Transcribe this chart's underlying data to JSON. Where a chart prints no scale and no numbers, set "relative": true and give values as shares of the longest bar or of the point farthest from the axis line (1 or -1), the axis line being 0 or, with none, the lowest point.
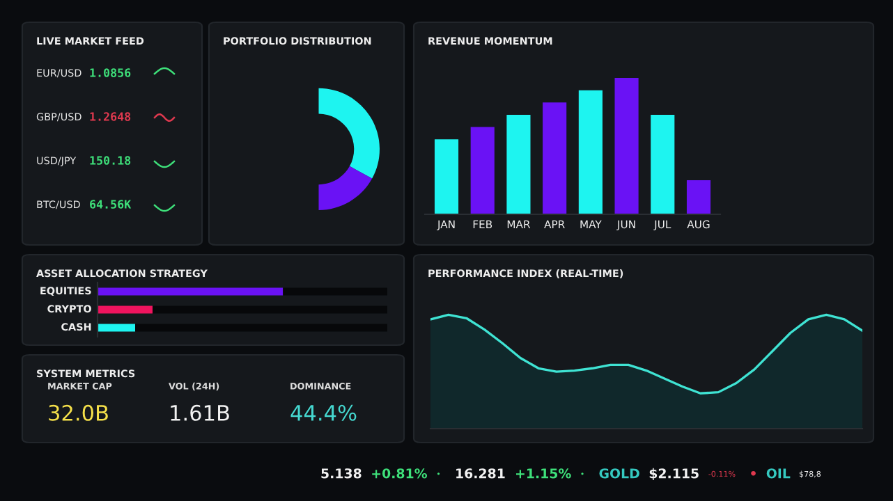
{
  "chart_data": [
    {
      "type": "other",
      "title": "LIVE MARKET FEED",
      "annotations": [
        "EUR/USD",
        "1.0856",
        "GBP/USD",
        "1.2648",
        "USD/JPY",
        "150.18",
        "BTC/USD",
        "64.56K"
      ],
      "colors": [
        "#e6e6e6",
        "#3ee07a",
        "#e6e6e6",
        "#e0394f",
        "#e6e6e6",
        "#3ee07a",
        "#e6e6e6",
        "#3ee07a"
      ]
    },
    {
      "type": "donut",
      "title": "PORTFOLIO DISTRIBUTION",
      "categories": [
        null,
        null
      ],
      "values": [
        66,
        34
      ],
      "colors": [
        "#1ef4f0",
        "#6a12f5"
      ]
    },
    {
      "type": "bar",
      "title": "REVENUE MOMENTUM",
      "relative": true,
      "categories": [
        "JAN",
        "FEB",
        "MAR",
        "APR",
        "MAY",
        "JUN",
        "JUL",
        "AUG"
      ],
      "values": [
        0.55,
        0.64,
        0.73,
        0.82,
        0.91,
        1,
        0.73,
        0.25
      ],
      "colors": [
        "#1ef4f0",
        "#6a12f5",
        "#1ef4f0",
        "#6a12f5",
        "#1ef4f0",
        "#6a12f5",
        "#1ef4f0",
        "#6a12f5"
      ]
    },
    {
      "type": "bar",
      "title": "ASSET ALLOCATION STRATEGY",
      "orientation": "horizontal",
      "stacked": true,
      "relative": true,
      "categories": [
        "EQUITIES",
        "CRYPTO",
        "CASH"
      ],
      "series": [
        {
          "colors": [
            "#6a12f5",
            "#f0145e",
            "#1ef4f0"
          ],
          "values": [
            0.64,
            0.19,
            0.13
          ]
        },
        {
          "color": "#07080a",
          "values": [
            0.36,
            0.81,
            0.87
          ]
        }
      ]
    },
    {
      "type": "other",
      "title": "SYSTEM METRICS",
      "annotations": [
        "MARKET CAP",
        "VOL (24H)",
        "DOMINANCE",
        "32.0B",
        "1.61B",
        "44.4%"
      ],
      "colors": [
        "#dddddd",
        "#dddddd",
        "#dddddd",
        "#f5e04a",
        "#f2f2f2",
        "#45d8d0"
      ]
    },
    {
      "type": "area",
      "title": "PERFORMANCE INDEX (REAL-TIME)",
      "relative": true,
      "categories": [
        null,
        null,
        null,
        null,
        null,
        null,
        null,
        null,
        null,
        null,
        null,
        null,
        null,
        null,
        null,
        null,
        null,
        null,
        null,
        null,
        null,
        null,
        null,
        null,
        null
      ],
      "values": [
        0.96,
        1,
        0.97,
        0.87,
        0.75,
        0.62,
        0.53,
        0.5,
        0.51,
        0.53,
        0.56,
        0.56,
        0.51,
        0.44,
        0.37,
        0.31,
        0.32,
        0.4,
        0.52,
        0.68,
        0.84,
        0.96,
        1,
        0.96,
        0.86
      ],
      "color": "#3fe3d3"
    },
    {
      "type": "other",
      "annotations": [
        "5.138",
        "+0.81%",
        "•",
        "16.281",
        "+1.15%",
        "•",
        "GOLD",
        "$2.115",
        "-0.11%",
        "•",
        "OIL",
        "$78,8"
      ],
      "colors": [
        "#f2f2f2",
        "#3ee07a",
        "#3ee07a",
        "#f2f2f2",
        "#3ee07a",
        "#3ee07a",
        "#35c9c0",
        "#f2f2f2",
        "#e0394f",
        "#e0394f",
        "#35c9c0",
        "#f2f2f2"
      ]
    }
  ]
}
